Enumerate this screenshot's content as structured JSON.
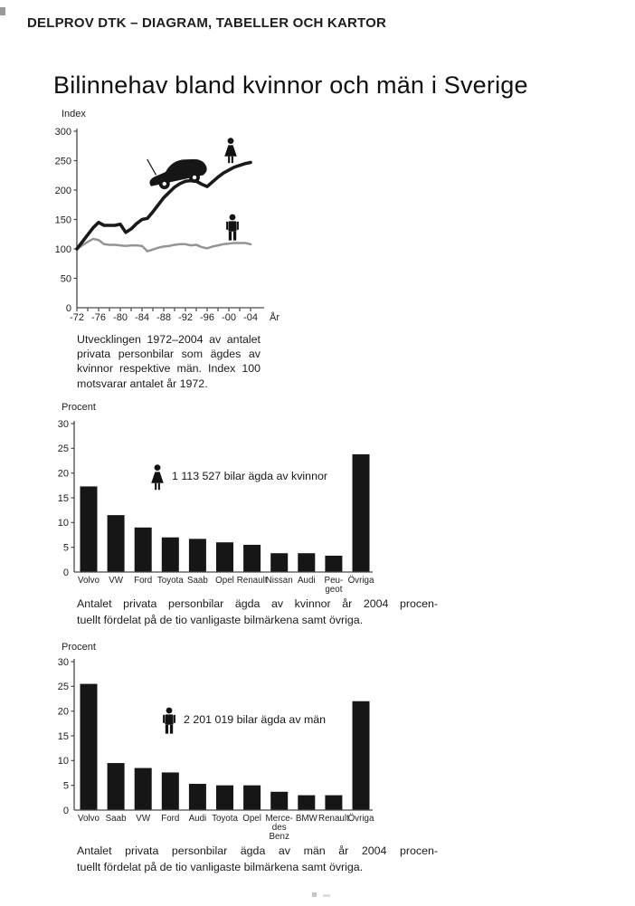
{
  "page": {
    "header": "DELPROV DTK – DIAGRAM, TABELLER OCH KARTOR",
    "title": "Bilinnehav bland kvinnor och män i Sverige"
  },
  "colors": {
    "ink": "#1a1a1a",
    "bar": "#161616",
    "gray_line": "#949494",
    "axis": "#4a4a4a"
  },
  "captions": {
    "line_chart": {
      "lines": [
        "Utvecklingen 1972–2004 av antalet",
        "privata personbilar som ägdes av",
        "kvinnor respektive män. Index 100",
        "motsvarar antalet år 1972."
      ]
    },
    "bar_women": {
      "lines": [
        "Antalet privata personbilar ägda av kvinnor år 2004 procen-",
        "tuellt fördelat på de tio vanligaste bilmärkena samt övriga."
      ]
    },
    "bar_men": {
      "lines": [
        "Antalet privata personbilar ägda av män år 2004 procen-",
        "tuellt fördelat på de tio vanligaste bilmärkena samt övriga."
      ]
    }
  },
  "chart_data": [
    {
      "type": "line",
      "ylabel": "Index",
      "xlabel": "År",
      "ylim": [
        0,
        300
      ],
      "yticks": [
        0,
        50,
        100,
        150,
        200,
        250,
        300
      ],
      "xtick_labels": [
        "-72",
        "-76",
        "-80",
        "-84",
        "-88",
        "-92",
        "-96",
        "-00",
        "-04"
      ],
      "x": [
        1972,
        1973,
        1974,
        1975,
        1976,
        1977,
        1978,
        1979,
        1980,
        1981,
        1982,
        1983,
        1984,
        1985,
        1986,
        1987,
        1988,
        1989,
        1990,
        1991,
        1992,
        1993,
        1994,
        1995,
        1996,
        1997,
        1998,
        1999,
        2000,
        2001,
        2002,
        2003,
        2004
      ],
      "series": [
        {
          "name": "kvinnor",
          "color": "#1a1a1a",
          "values": [
            100,
            112,
            124,
            136,
            145,
            140,
            140,
            140,
            142,
            128,
            134,
            143,
            150,
            152,
            163,
            175,
            187,
            196,
            205,
            211,
            215,
            216,
            215,
            210,
            206,
            214,
            222,
            229,
            234,
            239,
            242,
            245,
            247
          ]
        },
        {
          "name": "män",
          "color": "#949494",
          "values": [
            100,
            106,
            112,
            117,
            115,
            108,
            107,
            107,
            106,
            105,
            106,
            106,
            105,
            96,
            99,
            102,
            104,
            105,
            107,
            108,
            108,
            106,
            107,
            103,
            101,
            104,
            106,
            108,
            109,
            110,
            110,
            110,
            108
          ]
        }
      ]
    },
    {
      "type": "bar",
      "ylabel": "Procent",
      "ylim": [
        0,
        30
      ],
      "yticks": [
        0,
        5,
        10,
        15,
        20,
        25,
        30
      ],
      "categories": [
        [
          "Volvo"
        ],
        [
          "VW"
        ],
        [
          "Ford"
        ],
        [
          "Toyota"
        ],
        [
          "Saab"
        ],
        [
          "Opel"
        ],
        [
          "Renault"
        ],
        [
          "Nissan"
        ],
        [
          "Audi"
        ],
        [
          "Peu-",
          "geot"
        ],
        [
          "Övriga"
        ]
      ],
      "values": [
        17.3,
        11.5,
        9.0,
        7.0,
        6.7,
        6.0,
        5.5,
        3.8,
        3.8,
        3.3,
        23.8
      ],
      "annotation": "1 113 527 bilar ägda av kvinnor"
    },
    {
      "type": "bar",
      "ylabel": "Procent",
      "ylim": [
        0,
        30
      ],
      "yticks": [
        0,
        5,
        10,
        15,
        20,
        25,
        30
      ],
      "categories": [
        [
          "Volvo"
        ],
        [
          "Saab"
        ],
        [
          "VW"
        ],
        [
          "Ford"
        ],
        [
          "Audi"
        ],
        [
          "Toyota"
        ],
        [
          "Opel"
        ],
        [
          "Merce-",
          "des",
          "Benz"
        ],
        [
          "BMW"
        ],
        [
          "Renault"
        ],
        [
          "Övriga"
        ]
      ],
      "values": [
        25.5,
        9.5,
        8.5,
        7.6,
        5.3,
        5.0,
        5.0,
        3.7,
        3.0,
        3.0,
        22.0
      ],
      "annotation": "2 201 019 bilar ägda av män"
    }
  ]
}
